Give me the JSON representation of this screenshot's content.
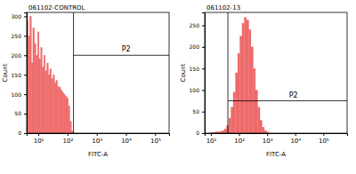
{
  "chart_data": [
    {
      "type": "histogram",
      "title": "061102-CONTROL",
      "x_label": "FITC-A",
      "y_label": "Count",
      "log": "x",
      "color": "#ee6a6a",
      "bins": [
        4,
        4.5,
        5.1,
        5.8,
        6.5,
        7.4,
        8.3,
        9.4,
        10.6,
        12,
        13.5,
        15.3,
        17.2,
        19.5,
        22,
        24.8,
        28,
        31.6,
        35.7,
        40.3,
        45.5,
        51.4,
        58,
        65.5,
        74,
        83.5,
        94.3,
        106,
        120,
        136,
        153
      ],
      "counts": [
        290,
        250,
        300,
        180,
        270,
        230,
        200,
        260,
        190,
        220,
        170,
        200,
        160,
        180,
        150,
        165,
        140,
        150,
        130,
        135,
        120,
        118,
        110,
        105,
        100,
        95,
        90,
        70,
        30,
        5
      ],
      "xlim": [
        4,
        300000
      ],
      "xticks": [
        {
          "value": 10,
          "label": "10¹"
        },
        {
          "value": 100,
          "label": "10²"
        },
        {
          "value": 1000,
          "label": "10³"
        },
        {
          "value": 10000,
          "label": "10⁴"
        },
        {
          "value": 100000,
          "label": "10⁵"
        }
      ],
      "ylim": [
        0,
        310
      ],
      "yticks": [
        0,
        50,
        100,
        150,
        200,
        250,
        300
      ],
      "gate": {
        "label": "P2",
        "x": 160,
        "y": 200
      }
    },
    {
      "type": "histogram",
      "title": "061102-13",
      "x_label": "FITC-A",
      "y_label": "Count",
      "log": "x",
      "color": "#ee6a6a",
      "bins": [
        10,
        12,
        14.4,
        17.3,
        20.7,
        24.9,
        29.9,
        35.8,
        43,
        51.6,
        61.9,
        74.3,
        89.2,
        107,
        128,
        154,
        185,
        222,
        266,
        319,
        383,
        460,
        552,
        662,
        795,
        954,
        1145
      ],
      "counts": [
        2,
        2,
        3,
        3,
        4,
        6,
        10,
        18,
        35,
        60,
        95,
        140,
        185,
        225,
        255,
        268,
        262,
        240,
        200,
        150,
        100,
        60,
        30,
        14,
        6,
        3
      ],
      "xlim": [
        6,
        700000
      ],
      "xticks": [
        {
          "value": 10,
          "label": "10¹"
        },
        {
          "value": 100,
          "label": "10²"
        },
        {
          "value": 1000,
          "label": "10³"
        },
        {
          "value": 10000,
          "label": "10⁴"
        },
        {
          "value": 100000,
          "label": "10⁵"
        }
      ],
      "ylim": [
        0,
        280
      ],
      "yticks": [
        0,
        50,
        100,
        150,
        200,
        250
      ],
      "gate": {
        "label": "P2",
        "x": 40,
        "y": 75
      }
    }
  ]
}
